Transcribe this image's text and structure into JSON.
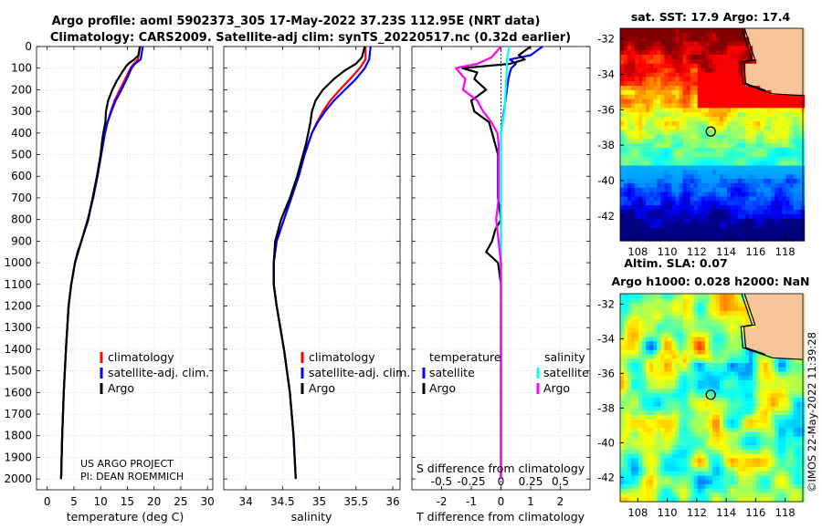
{
  "titles": {
    "line1": "Argo profile: aoml 5902373_305 17-May-2022 37.23S 112.95E (NRT data)",
    "line2": "Climatology: CARS2009. Satellite-adj clim: synTS_20220517.nc (0.32d earlier)"
  },
  "colors": {
    "climatology": "#ff0000",
    "satellite": "#0000ff",
    "argo": "#000000",
    "satellite_salinity": "#00ffff",
    "argo_salinity": "#ff00ff",
    "land": "#f7c49b"
  },
  "credits": {
    "project": "US ARGO PROJECT",
    "pi": "PI: DEAN ROEMMICH",
    "stamp": "©IMOS 22-May-2022 11:39:28"
  },
  "chart_data": [
    {
      "id": "temperature",
      "type": "line",
      "xlabel": "temperature (deg C)",
      "xlim": [
        -2,
        31
      ],
      "xticks": [
        0,
        5,
        10,
        15,
        20,
        25,
        30
      ],
      "ylim": [
        2050,
        0
      ],
      "yticks": [
        0,
        100,
        200,
        300,
        400,
        500,
        600,
        700,
        800,
        900,
        1000,
        1100,
        1200,
        1300,
        1400,
        1500,
        1600,
        1700,
        1800,
        1900,
        2000
      ],
      "legend": [
        "climatology",
        "satellite-adj. clim.",
        "Argo"
      ],
      "series": [
        {
          "name": "climatology",
          "color": "#ff0000",
          "depth": [
            0,
            60,
            80,
            100,
            150,
            200,
            250,
            300,
            350,
            400,
            500,
            600,
            700,
            800,
            900,
            1000,
            1100,
            1200,
            1400,
            1600,
            1800,
            2000
          ],
          "values": [
            17.3,
            17.0,
            16.2,
            15.6,
            14.6,
            13.6,
            12.6,
            11.9,
            11.3,
            10.8,
            10.1,
            9.4,
            8.6,
            7.6,
            6.4,
            5.2,
            4.5,
            4.0,
            3.5,
            3.1,
            2.8,
            2.6
          ]
        },
        {
          "name": "satellite-adj. clim.",
          "color": "#0000ff",
          "depth": [
            0,
            60,
            80,
            100,
            150,
            200,
            250,
            300,
            350,
            400,
            500,
            600,
            700,
            800,
            900,
            1000,
            1100,
            1200,
            1400,
            1600,
            1800,
            2000
          ],
          "values": [
            17.9,
            17.5,
            16.4,
            15.8,
            14.9,
            13.9,
            12.8,
            12.0,
            11.3,
            10.8,
            10.1,
            9.4,
            8.6,
            7.6,
            6.4,
            5.2,
            4.5,
            4.0,
            3.5,
            3.1,
            2.8,
            2.6
          ]
        },
        {
          "name": "Argo",
          "color": "#000000",
          "depth": [
            0,
            40,
            60,
            75,
            90,
            120,
            160,
            200,
            250,
            300,
            350,
            400,
            450,
            500,
            600,
            700,
            800,
            900,
            950,
            1000,
            1100,
            1200,
            1400,
            1600,
            1800,
            2000
          ],
          "values": [
            17.4,
            17.1,
            16.3,
            15.4,
            14.8,
            14.0,
            13.0,
            12.2,
            11.4,
            11.0,
            10.9,
            10.5,
            10.2,
            10.0,
            9.3,
            8.5,
            7.7,
            6.4,
            5.7,
            5.2,
            4.5,
            4.0,
            3.5,
            3.1,
            2.8,
            2.6
          ]
        }
      ],
      "annotations": [
        "US ARGO PROJECT",
        "PI: DEAN ROEMMICH"
      ]
    },
    {
      "id": "salinity",
      "type": "line",
      "xlabel": "salinity",
      "xlim": [
        33.7,
        36.1
      ],
      "xticks": [
        34,
        34.5,
        35,
        35.5,
        36
      ],
      "ylim": [
        2050,
        0
      ],
      "legend": [
        "climatology",
        "satellite-adj. clim.",
        "Argo"
      ],
      "series": [
        {
          "name": "climatology",
          "color": "#ff0000",
          "depth": [
            0,
            60,
            100,
            150,
            200,
            250,
            300,
            350,
            400,
            500,
            600,
            700,
            800,
            900,
            1000,
            1100,
            1200,
            1400,
            1600,
            1800,
            2000
          ],
          "values": [
            35.63,
            35.63,
            35.55,
            35.42,
            35.28,
            35.15,
            35.05,
            34.97,
            34.9,
            34.8,
            34.72,
            34.62,
            34.52,
            34.42,
            34.38,
            34.38,
            34.42,
            34.52,
            34.6,
            34.65,
            34.68
          ]
        },
        {
          "name": "satellite-adj. clim.",
          "color": "#0000ff",
          "depth": [
            0,
            60,
            100,
            150,
            200,
            250,
            300,
            350,
            400,
            500,
            600,
            700,
            800,
            900,
            1000,
            1100,
            1200,
            1400,
            1600,
            1800,
            2000
          ],
          "values": [
            35.7,
            35.68,
            35.62,
            35.5,
            35.35,
            35.2,
            35.08,
            34.98,
            34.9,
            34.8,
            34.72,
            34.62,
            34.52,
            34.42,
            34.38,
            34.38,
            34.42,
            34.52,
            34.6,
            34.65,
            34.68
          ]
        },
        {
          "name": "Argo",
          "color": "#000000",
          "depth": [
            0,
            50,
            80,
            110,
            150,
            200,
            250,
            300,
            350,
            400,
            450,
            500,
            600,
            700,
            800,
            900,
            1000,
            1100,
            1200,
            1400,
            1600,
            1800,
            2000
          ],
          "values": [
            35.62,
            35.58,
            35.5,
            35.35,
            35.2,
            35.05,
            34.95,
            34.9,
            34.88,
            34.85,
            34.82,
            34.78,
            34.7,
            34.6,
            34.48,
            34.4,
            34.38,
            34.38,
            34.42,
            34.52,
            34.6,
            34.65,
            34.68
          ]
        }
      ]
    },
    {
      "id": "difference",
      "type": "line",
      "xlabel": "T difference from climatology",
      "xlabel_top": "S difference from climatology",
      "xlim": [
        -3,
        3
      ],
      "xticks": [
        -2,
        -1,
        0,
        1,
        2
      ],
      "xlim_salinity": [
        -0.75,
        0.75
      ],
      "xticks_salinity": [
        -0.5,
        -0.25,
        0,
        0.25,
        0.5
      ],
      "xticklabels_salinity": [
        "-0.5",
        "-0.25",
        "0",
        "0.25",
        "0.5"
      ],
      "ylim": [
        2050,
        0
      ],
      "legend_groups": {
        "temperature": [
          "satellite",
          "Argo"
        ],
        "salinity": [
          "satellite",
          "Argo"
        ]
      },
      "series": [
        {
          "name": "temperature satellite",
          "color": "#0000ff",
          "depth": [
            0,
            40,
            60,
            80,
            100,
            120,
            150,
            200,
            300,
            400,
            500,
            1000,
            2000
          ],
          "values": [
            1.4,
            1.0,
            0.3,
            0.5,
            0.35,
            0.3,
            0.25,
            0.2,
            0.1,
            0.0,
            0.0,
            0.0,
            0.0
          ]
        },
        {
          "name": "temperature Argo",
          "color": "#000000",
          "depth": [
            0,
            40,
            60,
            80,
            100,
            120,
            150,
            200,
            250,
            300,
            350,
            400,
            500,
            600,
            700,
            800,
            850,
            900,
            950,
            1000,
            1100,
            2000
          ],
          "values": [
            1.0,
            0.6,
            0.8,
            0.3,
            -1.3,
            -0.8,
            -0.9,
            -0.5,
            -1.0,
            -0.9,
            -0.4,
            -0.3,
            -0.1,
            -0.1,
            -0.1,
            0.0,
            -0.2,
            -0.3,
            -0.5,
            -0.1,
            0.0,
            0.0
          ]
        },
        {
          "name": "salinity satellite",
          "color": "#00ffff",
          "depth": [
            0,
            60,
            100,
            200,
            300,
            400,
            2000
          ],
          "values": [
            0.07,
            0.05,
            0.05,
            0.04,
            0.03,
            0.0,
            0.0
          ]
        },
        {
          "name": "salinity Argo",
          "color": "#ff00ff",
          "depth": [
            0,
            50,
            80,
            100,
            150,
            200,
            250,
            300,
            350,
            400,
            450,
            500,
            600,
            700,
            800,
            900,
            1000,
            1100,
            2000
          ],
          "values": [
            0.0,
            -0.08,
            -0.2,
            -0.38,
            -0.3,
            -0.32,
            -0.2,
            -0.15,
            -0.08,
            -0.03,
            -0.02,
            -0.02,
            -0.02,
            -0.02,
            -0.04,
            -0.02,
            0.0,
            0.0,
            0.0
          ]
        }
      ]
    },
    {
      "id": "sst_map",
      "type": "heatmap",
      "title": "sat. SST: 17.9 Argo: 17.4",
      "xticks": [
        108,
        110,
        112,
        114,
        116,
        118
      ],
      "yticks": [
        -32,
        -34,
        -36,
        -38,
        -40,
        -42
      ],
      "xlim": [
        106.8,
        119.2
      ],
      "ylim": [
        -43.4,
        -31.4
      ],
      "marker": {
        "lon": 112.95,
        "lat": -37.23
      }
    },
    {
      "id": "sla_map",
      "type": "heatmap",
      "title": "Altim. SLA: 0.07",
      "subtitle": "Argo h1000: 0.028 h2000: NaN",
      "xticks": [
        108,
        110,
        112,
        114,
        116,
        118
      ],
      "yticks": [
        -32,
        -34,
        -36,
        -38,
        -40,
        -42
      ],
      "xlim": [
        106.8,
        119.2
      ],
      "ylim": [
        -43.4,
        -31.4
      ],
      "marker": {
        "lon": 112.95,
        "lat": -37.23
      }
    }
  ]
}
